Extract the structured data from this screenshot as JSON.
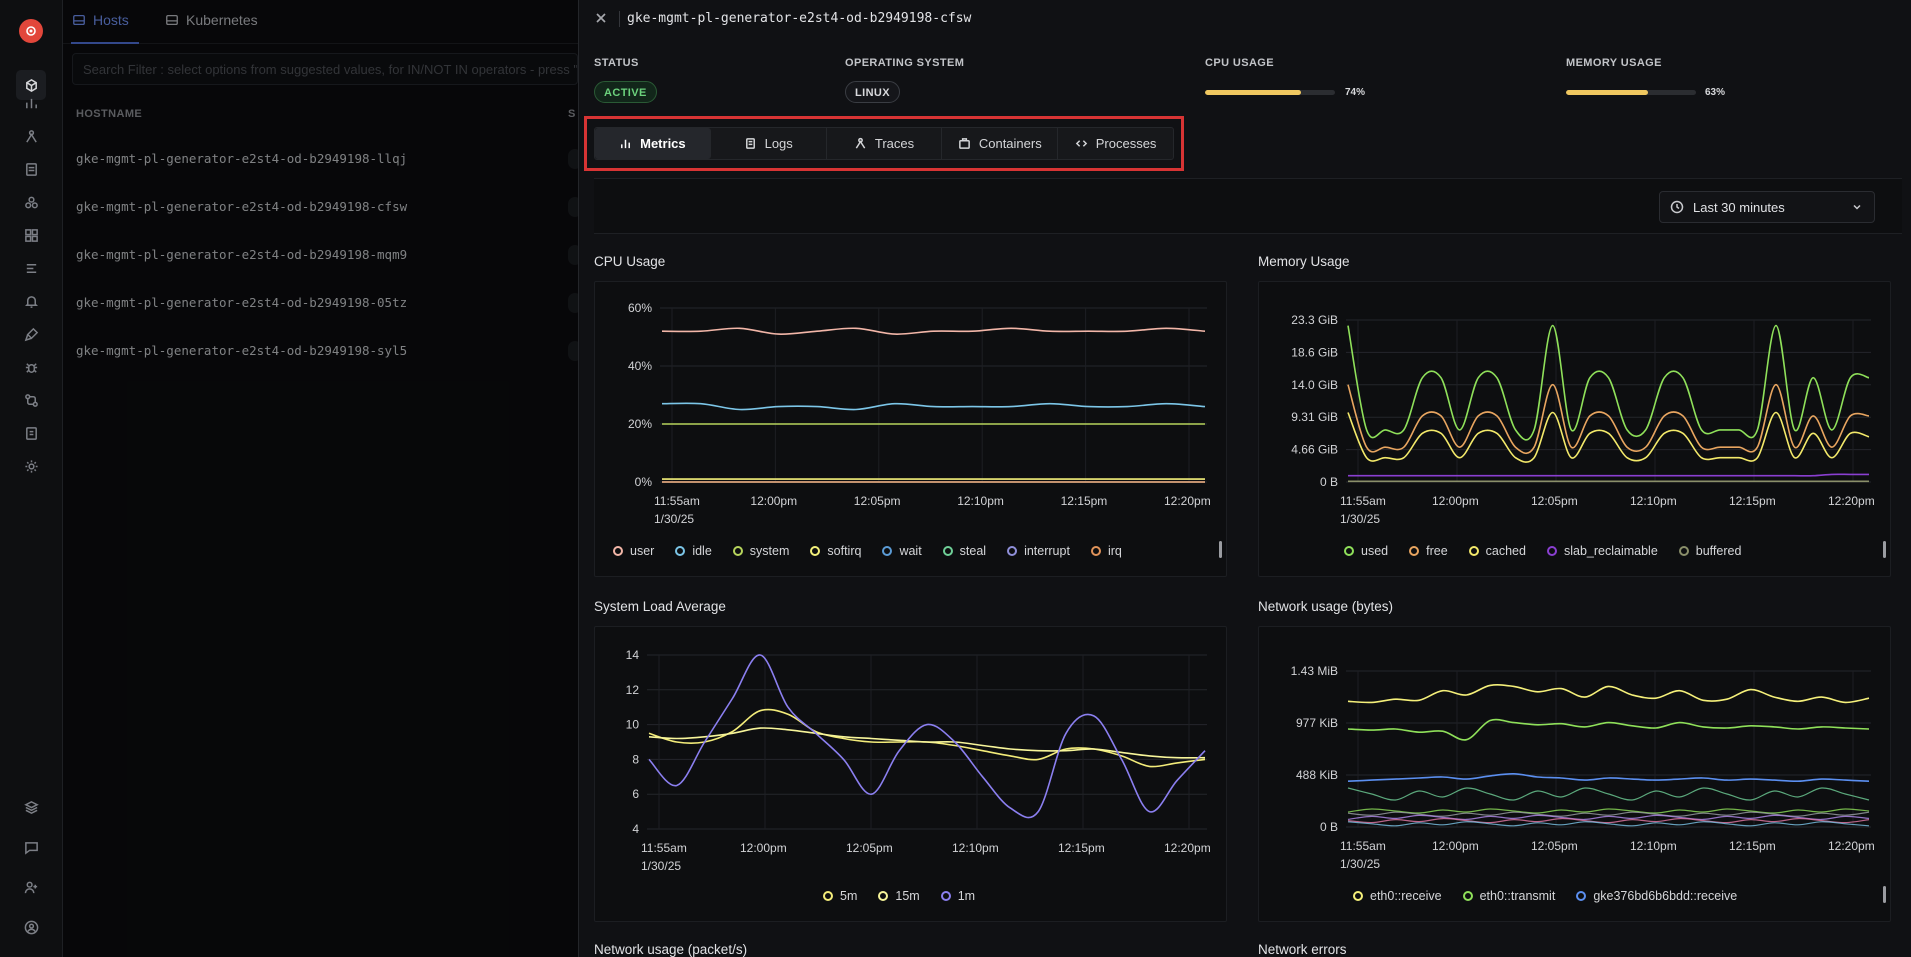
{
  "list": {
    "tabs": [
      {
        "label": "Hosts"
      },
      {
        "label": "Kubernetes"
      }
    ],
    "search_placeholder": "Search Filter : select options from suggested values, for IN/NOT IN operators - press \"Enter\"",
    "columns": {
      "hostname": "HOSTNAME",
      "status": "S"
    },
    "rows": [
      {
        "hostname": "gke-mgmt-pl-generator-e2st4-od-b2949198-llqj"
      },
      {
        "hostname": "gke-mgmt-pl-generator-e2st4-od-b2949198-cfsw"
      },
      {
        "hostname": "gke-mgmt-pl-generator-e2st4-od-b2949198-mqm9"
      },
      {
        "hostname": "gke-mgmt-pl-generator-e2st4-od-b2949198-05tz"
      },
      {
        "hostname": "gke-mgmt-pl-generator-e2st4-od-b2949198-syl5"
      }
    ]
  },
  "panel": {
    "title": "gke-mgmt-pl-generator-e2st4-od-b2949198-cfsw",
    "status": {
      "label": "STATUS",
      "value": "ACTIVE"
    },
    "os": {
      "label": "OPERATING SYSTEM",
      "value": "LINUX"
    },
    "cpu": {
      "label": "CPU USAGE",
      "value_text": "74%",
      "fraction": 0.74
    },
    "memory": {
      "label": "MEMORY USAGE",
      "value_text": "63%",
      "fraction": 0.63
    },
    "tabs": [
      {
        "label": "Metrics",
        "icon": "bar-chart-icon",
        "selected": true
      },
      {
        "label": "Logs",
        "icon": "logs-icon",
        "selected": false
      },
      {
        "label": "Traces",
        "icon": "traces-icon",
        "selected": false
      },
      {
        "label": "Containers",
        "icon": "container-icon",
        "selected": false
      },
      {
        "label": "Processes",
        "icon": "code-icon",
        "selected": false
      }
    ],
    "time_range": "Last 30 minutes",
    "cards": {
      "cpu_title": "CPU Usage",
      "memory_title": "Memory Usage",
      "load_title": "System Load Average",
      "net_bytes_title": "Network usage (bytes)",
      "net_packets_title": "Network usage (packet/s)",
      "net_errors_title": "Network errors"
    }
  },
  "chart_data": [
    {
      "type": "line",
      "title": "CPU Usage",
      "x_ticks": [
        "11:55am\n1/30/25",
        "12:00pm",
        "12:05pm",
        "12:10pm",
        "12:15pm",
        "12:20pm"
      ],
      "y_ticks": [
        "0%",
        "20%",
        "40%",
        "60%"
      ],
      "ylim": [
        0,
        60
      ],
      "grid": true,
      "legend": "bottom",
      "series": [
        {
          "name": "user",
          "color": "#f2b6a8",
          "values": [
            52,
            52,
            53,
            51,
            52,
            53,
            51,
            52,
            52,
            53,
            52,
            52,
            52,
            53,
            52
          ]
        },
        {
          "name": "idle",
          "color": "#7cc6e8",
          "values": [
            27,
            27,
            25,
            26,
            26,
            25,
            27,
            26,
            26,
            26,
            27,
            26,
            26,
            27,
            26
          ]
        },
        {
          "name": "system",
          "color": "#b6d45c",
          "values": [
            20,
            20,
            20,
            20,
            20,
            20,
            20,
            20,
            20,
            20,
            20,
            20,
            20,
            20,
            20
          ]
        },
        {
          "name": "softirq",
          "color": "#f3f07a",
          "values": [
            1,
            1,
            1,
            1,
            1,
            1,
            1,
            1,
            1,
            1,
            1,
            1,
            1,
            1,
            1
          ]
        },
        {
          "name": "wait",
          "color": "#5b9bd5",
          "values": [
            0,
            0,
            0,
            0,
            0,
            0,
            0,
            0,
            0,
            0,
            0,
            0,
            0,
            0,
            0
          ]
        },
        {
          "name": "steal",
          "color": "#6fcf97",
          "values": [
            0,
            0,
            0,
            0,
            0,
            0,
            0,
            0,
            0,
            0,
            0,
            0,
            0,
            0,
            0
          ]
        },
        {
          "name": "interrupt",
          "color": "#8f8fd9",
          "values": [
            0,
            0,
            0,
            0,
            0,
            0,
            0,
            0,
            0,
            0,
            0,
            0,
            0,
            0,
            0
          ]
        },
        {
          "name": "irq",
          "color": "#e0935a",
          "values": [
            0,
            0,
            0,
            0,
            0,
            0,
            0,
            0,
            0,
            0,
            0,
            0,
            0,
            0,
            0
          ]
        }
      ]
    },
    {
      "type": "line",
      "title": "Memory Usage",
      "x_ticks": [
        "11:55am\n1/30/25",
        "12:00pm",
        "12:05pm",
        "12:10pm",
        "12:15pm",
        "12:20pm"
      ],
      "y_ticks": [
        "0 B",
        "4.66 GiB",
        "9.31 GiB",
        "14.0 GiB",
        "18.6 GiB",
        "23.3 GiB"
      ],
      "ylim": [
        0,
        23.3
      ],
      "grid": true,
      "legend": "bottom",
      "series": [
        {
          "name": "used",
          "color": "#8fe05a",
          "values": [
            22.5,
            7.5,
            7.5,
            7.5,
            15,
            15,
            7.5,
            15,
            15,
            7.5,
            7.5,
            22.5,
            7.5,
            15,
            15,
            7.5,
            7.5,
            15,
            15,
            7.5,
            7.5,
            7.5,
            7.5,
            22.5,
            7.5,
            15,
            7.5,
            15,
            15
          ]
        },
        {
          "name": "free",
          "color": "#e8a560",
          "values": [
            14,
            5,
            5,
            5,
            9.5,
            9.5,
            5,
            9.5,
            9.5,
            5,
            5,
            14,
            5,
            9.5,
            9.5,
            5,
            5,
            9.5,
            9.5,
            5,
            5,
            5,
            5,
            14,
            5,
            9.5,
            5,
            9.5,
            9.5
          ]
        },
        {
          "name": "cached",
          "color": "#f3e96a",
          "values": [
            10,
            3.5,
            3.5,
            3.5,
            7,
            7,
            3.5,
            7,
            7,
            3.5,
            3.5,
            10,
            3.5,
            7,
            7,
            3.5,
            3.5,
            7,
            7,
            3.5,
            3.5,
            3.5,
            3.5,
            10,
            3.5,
            7,
            3.5,
            7,
            6.5
          ]
        },
        {
          "name": "slab_reclaimable",
          "color": "#8a3fd1",
          "values": [
            0.9,
            0.9,
            0.9,
            0.9,
            0.9,
            0.9,
            0.9,
            0.9,
            0.9,
            0.9,
            0.9,
            0.9,
            0.9,
            0.9,
            0.9,
            0.9,
            0.9,
            0.9,
            0.9,
            0.9,
            0.9,
            0.9,
            0.9,
            0.9,
            0.9,
            0.9,
            1.1,
            1.1,
            1.1
          ]
        },
        {
          "name": "buffered",
          "color": "#8a8f6a",
          "values": [
            0.1,
            0.1,
            0.1,
            0.1,
            0.1,
            0.1,
            0.1,
            0.1,
            0.1,
            0.1,
            0.1,
            0.1,
            0.1,
            0.1,
            0.1,
            0.1,
            0.1,
            0.1,
            0.1,
            0.1,
            0.1,
            0.1,
            0.1,
            0.1,
            0.1,
            0.1,
            0.1,
            0.1,
            0.1
          ]
        }
      ]
    },
    {
      "type": "line",
      "title": "System Load Average",
      "x_ticks": [
        "11:55am\n1/30/25",
        "12:00pm",
        "12:05pm",
        "12:10pm",
        "12:15pm",
        "12:20pm"
      ],
      "y_ticks": [
        "4",
        "6",
        "8",
        "10",
        "12",
        "14"
      ],
      "ylim": [
        4,
        14
      ],
      "grid": true,
      "legend": "bottom",
      "series": [
        {
          "name": "5m",
          "color": "#f3ec7a",
          "values": [
            9.5,
            9,
            9,
            9.6,
            10.8,
            10.6,
            9.6,
            9.2,
            9,
            9,
            9,
            8.8,
            8.5,
            8.2,
            8,
            8.6,
            8.6,
            8.2,
            7.6,
            7.8,
            8
          ]
        },
        {
          "name": "15m",
          "color": "#f7f59a",
          "values": [
            9.3,
            9.2,
            9.3,
            9.5,
            9.8,
            9.7,
            9.5,
            9.3,
            9.2,
            9.1,
            9,
            9,
            8.8,
            8.6,
            8.5,
            8.5,
            8.6,
            8.4,
            8.2,
            8.1,
            8.1
          ]
        },
        {
          "name": "1m",
          "color": "#8b7ff0",
          "values": [
            8,
            6.5,
            9,
            11.5,
            14,
            11,
            9.5,
            8,
            6,
            8.5,
            10,
            9,
            7,
            5.2,
            5,
            9.5,
            10.5,
            8,
            5,
            6.8,
            8.5
          ]
        }
      ]
    },
    {
      "type": "line",
      "title": "Network usage (bytes)",
      "x_ticks": [
        "11:55am\n1/30/25",
        "12:00pm",
        "12:05pm",
        "12:10pm",
        "12:15pm",
        "12:20pm"
      ],
      "y_ticks": [
        "0 B",
        "488 KiB",
        "977 KiB",
        "1.43 MiB"
      ],
      "ylim": [
        0,
        1465
      ],
      "grid": true,
      "legend": "bottom",
      "series": [
        {
          "name": "eth0::receive",
          "color": "#f5f07a",
          "values": [
            1180,
            1170,
            1200,
            1190,
            1280,
            1240,
            1330,
            1320,
            1270,
            1300,
            1220,
            1320,
            1240,
            1210,
            1280,
            1190,
            1200,
            1290,
            1220,
            1180,
            1220,
            1170,
            1210
          ]
        },
        {
          "name": "eth0::transmit",
          "color": "#8fe05a",
          "values": [
            920,
            910,
            920,
            890,
            900,
            820,
            1000,
            980,
            960,
            970,
            940,
            980,
            950,
            930,
            980,
            940,
            930,
            950,
            940,
            920,
            940,
            930,
            920
          ]
        },
        {
          "name": "gke376bd6b6bdd::receive",
          "color": "#5b8ff0",
          "values": [
            430,
            440,
            450,
            460,
            470,
            450,
            480,
            500,
            470,
            460,
            440,
            460,
            450,
            440,
            450,
            460,
            440,
            450,
            440,
            430,
            450,
            440,
            430
          ]
        }
      ]
    }
  ]
}
